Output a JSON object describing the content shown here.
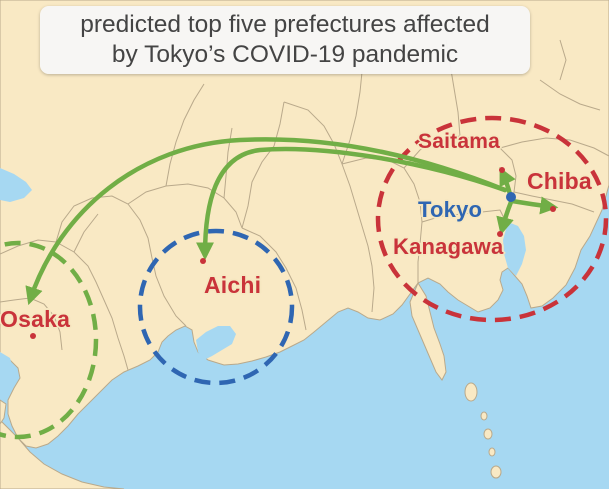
{
  "title": {
    "line1": "predicted top five prefectures affected",
    "line2": "by Tokyo’s COVID-19 pandemic"
  },
  "places": {
    "saitama": "Saitama",
    "chiba": "Chiba",
    "tokyo": "Tokyo",
    "kanagawa": "Kanagawa",
    "aichi": "Aichi",
    "osaka": "Osaka"
  },
  "colors": {
    "sea": "#a6d8f2",
    "land": "#f9e9c4",
    "border": "#b9a98b",
    "red": "#c9333a",
    "blue": "#2f66b2",
    "green": "#71ae46"
  }
}
